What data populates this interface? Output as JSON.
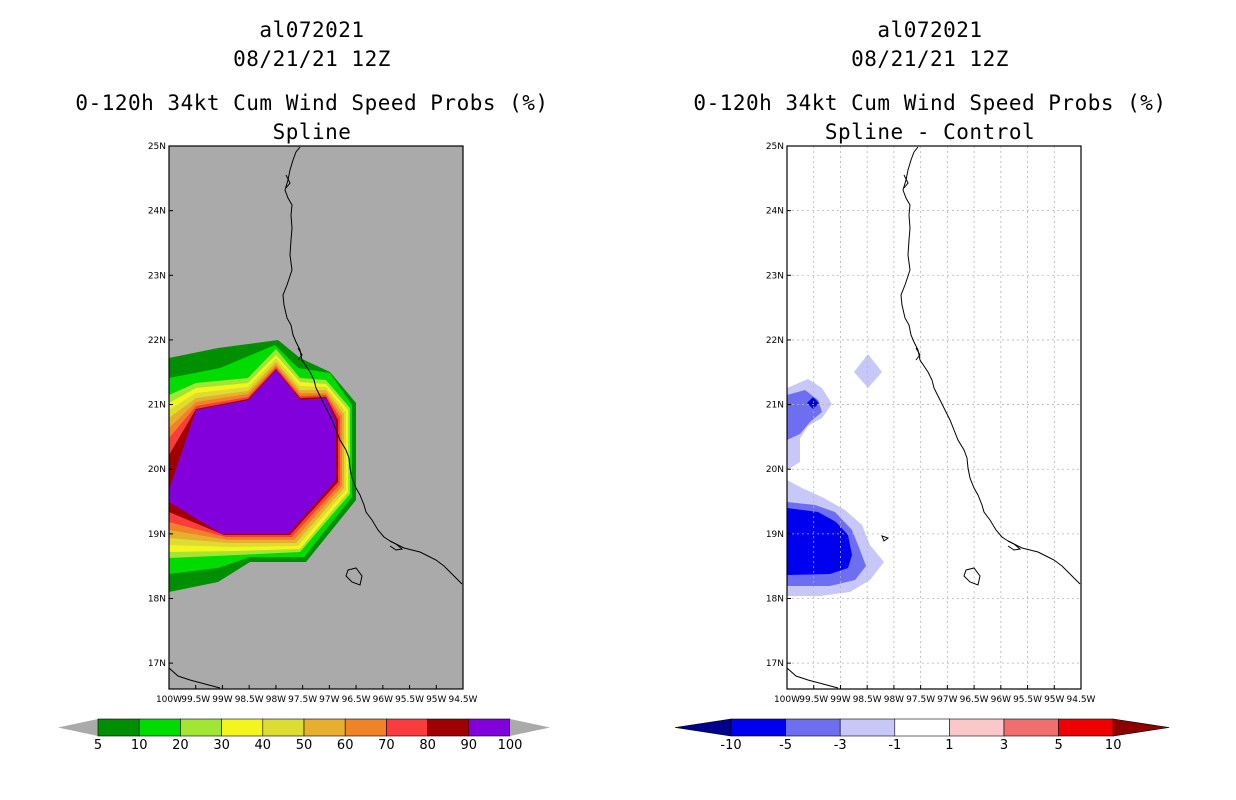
{
  "left_panel": {
    "title_storm": "al072021",
    "title_date": "08/21/21 12Z",
    "title_product": "0-120h 34kt Cum Wind Speed Probs (%)",
    "title_variant": "Spline"
  },
  "right_panel": {
    "title_storm": "al072021",
    "title_date": "08/21/21 12Z",
    "title_product": "0-120h 34kt Cum Wind Speed Probs (%)",
    "title_variant": "Spline - Control"
  },
  "chart_data": [
    {
      "type": "heatmap",
      "title": "0-120h 34kt Cum Wind Speed Probs (%) Spline",
      "xlim": [
        -100,
        -94.5
      ],
      "ylim": [
        16.6,
        25
      ],
      "xtick_labels": [
        "100W",
        "99.5W",
        "99W",
        "98.5W",
        "98W",
        "97.5W",
        "97W",
        "96.5W",
        "96W",
        "95.5W",
        "95W",
        "94.5W"
      ],
      "ytick_labels": [
        "17N",
        "18N",
        "19N",
        "20N",
        "21N",
        "22N",
        "23N",
        "24N",
        "25N"
      ],
      "legend_levels": [
        "5",
        "10",
        "20",
        "30",
        "40",
        "50",
        "60",
        "70",
        "80",
        "90",
        "100"
      ],
      "legend_colors": [
        "#008f00",
        "#00dc00",
        "#a0e632",
        "#f5f51e",
        "#dcdc32",
        "#e6af2d",
        "#f08228",
        "#fa3c3c",
        "#a00000",
        "#8200dc"
      ],
      "missing_color": "#aaaaaa",
      "grid": false
    },
    {
      "type": "heatmap",
      "title": "0-120h 34kt Cum Wind Speed Probs (%) Spline - Control",
      "xlim": [
        -100,
        -94.5
      ],
      "ylim": [
        16.6,
        25
      ],
      "xtick_labels": [
        "100W",
        "99.5W",
        "99W",
        "98.5W",
        "98W",
        "97.5W",
        "97W",
        "96.5W",
        "96W",
        "95.5W",
        "95W",
        "94.5W"
      ],
      "ytick_labels": [
        "17N",
        "18N",
        "19N",
        "20N",
        "21N",
        "22N",
        "23N",
        "24N",
        "25N"
      ],
      "legend_levels": [
        "-10",
        "-5",
        "-3",
        "-1",
        "1",
        "3",
        "5",
        "10"
      ],
      "legend_colors": [
        "#00008c",
        "#0000f0",
        "#6e6ef0",
        "#c8c8f8",
        "#ffffff",
        "#fac8c8",
        "#f06e6e",
        "#f00000",
        "#8c0000"
      ],
      "grid": true
    }
  ]
}
